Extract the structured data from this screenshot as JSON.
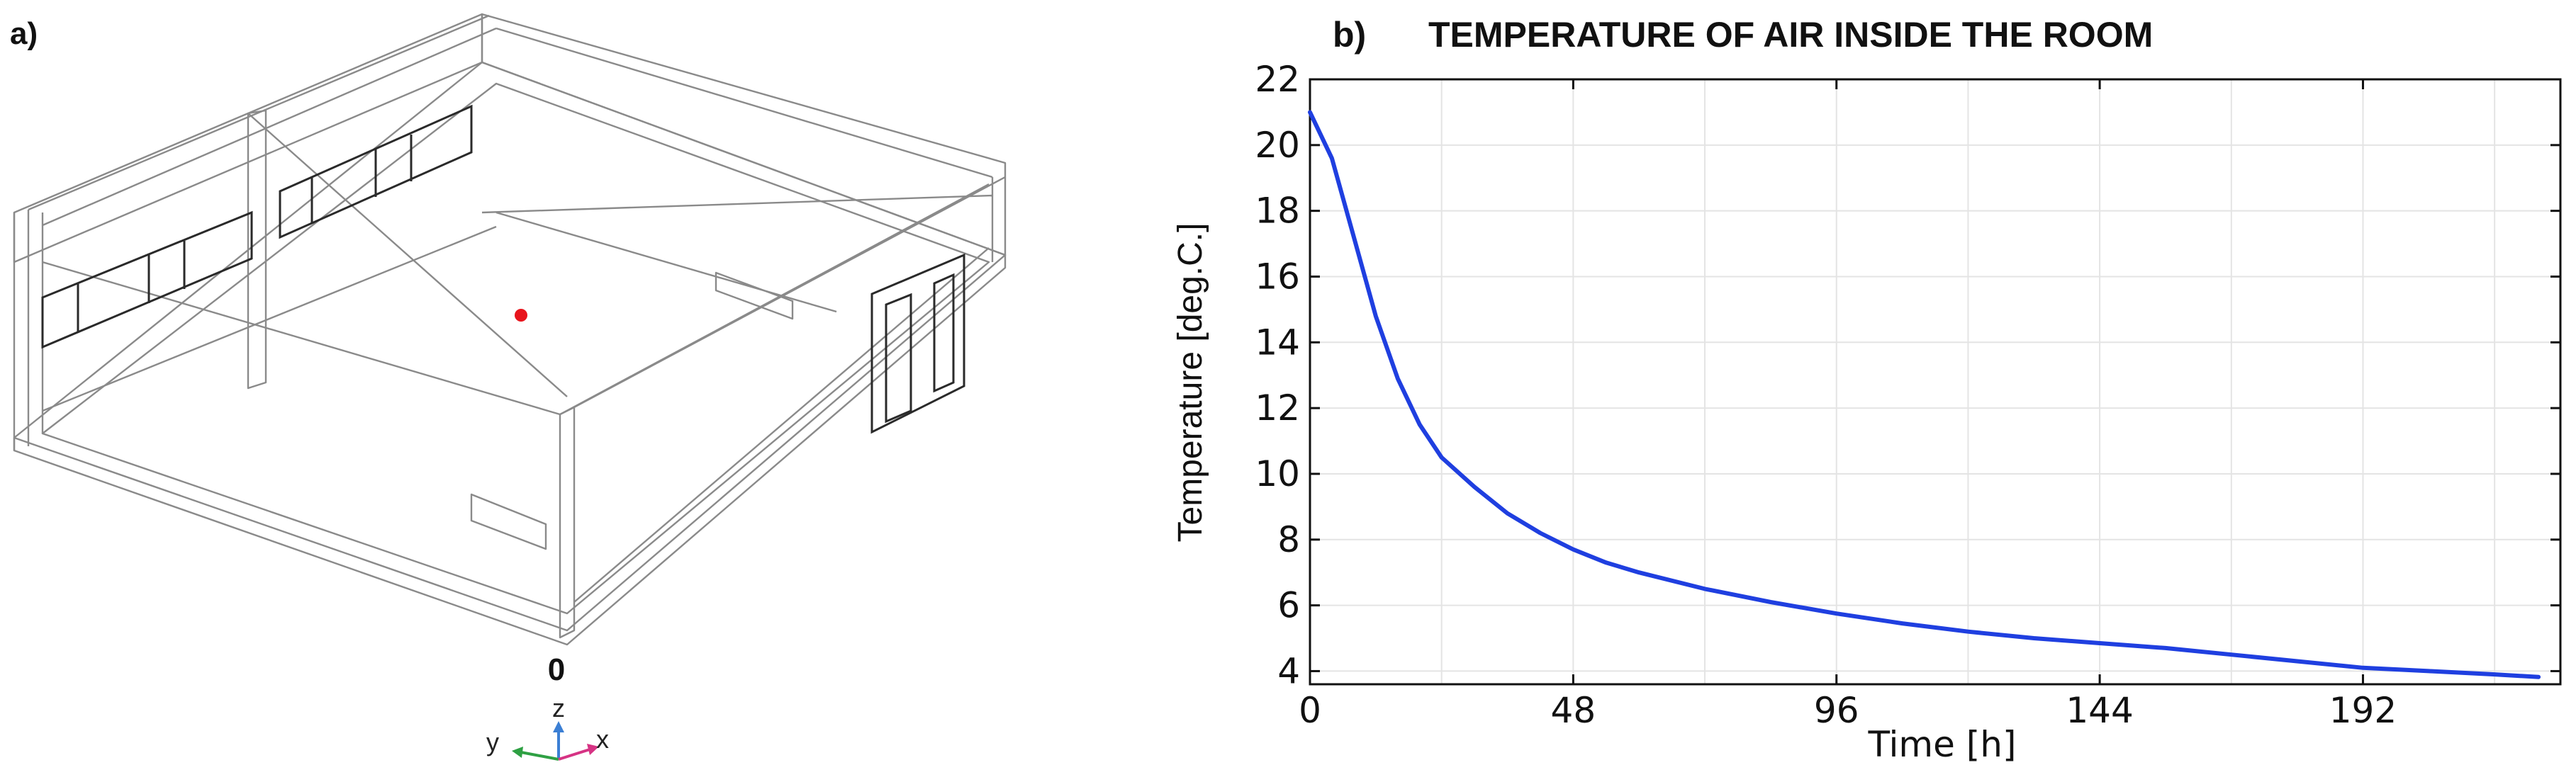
{
  "panel_a": {
    "label": "a)",
    "axis_triad": {
      "origin_label": "0",
      "z_label": "z",
      "y_label": "y",
      "x_label": "x"
    },
    "colors": {
      "wireframe": "#7d7d7d",
      "window_frame": "#2a2a2a",
      "probe_point": "#e8141c",
      "z_axis": "#3b7fd4",
      "y_axis": "#2ea043",
      "x_axis": "#d63384"
    }
  },
  "chart_data": {
    "type": "line",
    "panel_label": "b)",
    "title": "TEMPERATURE OF AIR INSIDE THE ROOM",
    "xlabel": "Time [h]",
    "ylabel": "Temperature [deg.C.]",
    "xlim": [
      0,
      228
    ],
    "ylim": [
      3.6,
      22
    ],
    "xticks": [
      0,
      48,
      96,
      144,
      192
    ],
    "yticks": [
      4,
      6,
      8,
      10,
      12,
      14,
      16,
      18,
      20,
      22
    ],
    "grid": true,
    "line_color": "#1f3fe0",
    "series": [
      {
        "x": [
          0,
          4,
          8,
          12,
          16,
          20,
          24,
          30,
          36,
          42,
          48,
          54,
          60,
          72,
          84,
          96,
          108,
          120,
          132,
          144,
          156,
          168,
          180,
          192,
          204,
          216,
          224
        ],
        "values": [
          21.0,
          19.6,
          17.2,
          14.8,
          12.9,
          11.5,
          10.5,
          9.6,
          8.8,
          8.2,
          7.7,
          7.3,
          7.0,
          6.5,
          6.1,
          5.75,
          5.45,
          5.2,
          5.0,
          4.85,
          4.7,
          4.5,
          4.3,
          4.1,
          4.0,
          3.9,
          3.82
        ]
      }
    ]
  }
}
